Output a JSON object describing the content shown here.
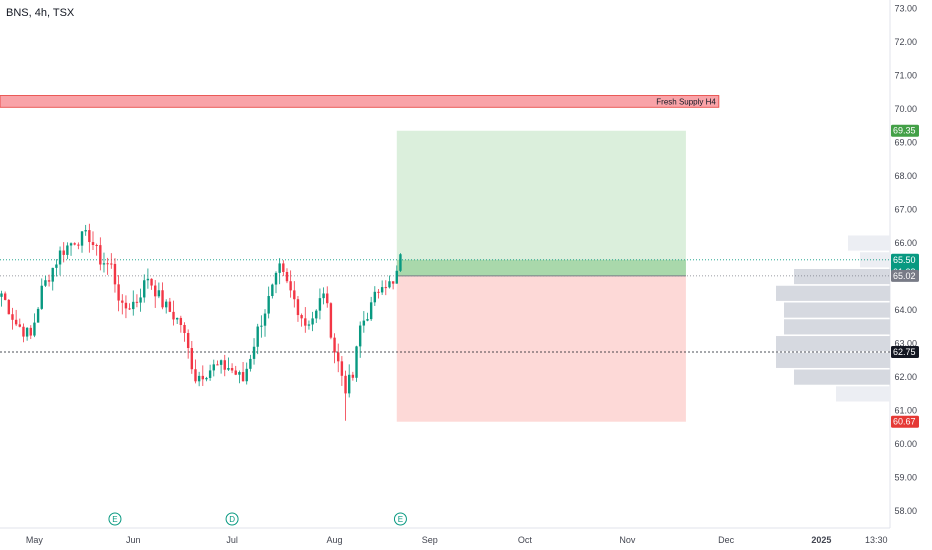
{
  "header": {
    "symbol": "BNS, 4h, TSX"
  },
  "chart_data": {
    "type": "candlestick",
    "y_axis": {
      "ylim": [
        57.5,
        73.25
      ],
      "ticks": [
        "58.00",
        "59.00",
        "60.00",
        "61.00",
        "62.00",
        "63.00",
        "64.00",
        "65.00",
        "66.00",
        "67.00",
        "68.00",
        "69.00",
        "70.00",
        "71.00",
        "72.00",
        "73.00"
      ]
    },
    "x_axis": {
      "labels": [
        {
          "label": "May",
          "bar": 9
        },
        {
          "label": "Jun",
          "bar": 36
        },
        {
          "label": "Jul",
          "bar": 63
        },
        {
          "label": "Aug",
          "bar": 91
        },
        {
          "label": "Sep",
          "bar": 117
        },
        {
          "label": "Oct",
          "bar": 143
        },
        {
          "label": "Nov",
          "bar": 171
        },
        {
          "label": "Dec",
          "bar": 198
        },
        {
          "label": "2025",
          "bar": 224
        },
        {
          "label": "13:30",
          "bar": 239
        }
      ]
    },
    "supply_zone": {
      "label": "Fresh Supply H4",
      "low": 70.05,
      "high": 70.4,
      "end_bar": 196
    },
    "position": {
      "entry": 65.02,
      "target": 69.35,
      "stop": 60.67,
      "start_bar": 108,
      "end_bar": 187,
      "current": 65.5
    },
    "levels": [
      65.5,
      65.02,
      62.75
    ],
    "price_tags": [
      {
        "value": 69.35,
        "label": "69.35",
        "color": "#43a047"
      },
      {
        "value": 65.5,
        "label": "65.50",
        "sub": "01:28:48",
        "color": "#089981"
      },
      {
        "value": 65.02,
        "label": "65.02",
        "color": "#787b86"
      },
      {
        "value": 62.75,
        "label": "62.75",
        "color": "#131722"
      },
      {
        "value": 60.67,
        "label": "60.67",
        "color": "#e53935"
      }
    ],
    "events": [
      {
        "bar": 31,
        "letter": "E"
      },
      {
        "bar": 63,
        "letter": "D"
      },
      {
        "bar": 109,
        "letter": "E"
      }
    ],
    "volume_profile": [
      {
        "price": 66.0,
        "width": 42
      },
      {
        "price": 65.5,
        "width": 30
      },
      {
        "price": 65.0,
        "width": 96
      },
      {
        "price": 64.5,
        "width": 114
      },
      {
        "price": 64.0,
        "width": 106
      },
      {
        "price": 63.5,
        "width": 106
      },
      {
        "price": 63.0,
        "width": 114
      },
      {
        "price": 62.5,
        "width": 114
      },
      {
        "price": 62.0,
        "width": 96
      },
      {
        "price": 61.5,
        "width": 54
      }
    ],
    "close_path": [
      {
        "bar": 0,
        "price": 64.5
      },
      {
        "bar": 4,
        "price": 63.6
      },
      {
        "bar": 8,
        "price": 63.2
      },
      {
        "bar": 11,
        "price": 64.6
      },
      {
        "bar": 16,
        "price": 65.7
      },
      {
        "bar": 20,
        "price": 66.1
      },
      {
        "bar": 24,
        "price": 66.2
      },
      {
        "bar": 27,
        "price": 65.5
      },
      {
        "bar": 30,
        "price": 65.3
      },
      {
        "bar": 33,
        "price": 64.0
      },
      {
        "bar": 37,
        "price": 64.3
      },
      {
        "bar": 40,
        "price": 65.0
      },
      {
        "bar": 44,
        "price": 64.2
      },
      {
        "bar": 49,
        "price": 63.6
      },
      {
        "bar": 53,
        "price": 62.0
      },
      {
        "bar": 58,
        "price": 62.3
      },
      {
        "bar": 62,
        "price": 62.3
      },
      {
        "bar": 66,
        "price": 61.9
      },
      {
        "bar": 70,
        "price": 63.4
      },
      {
        "bar": 74,
        "price": 64.6
      },
      {
        "bar": 76,
        "price": 65.2
      },
      {
        "bar": 80,
        "price": 64.3
      },
      {
        "bar": 83,
        "price": 63.6
      },
      {
        "bar": 86,
        "price": 63.9
      },
      {
        "bar": 88,
        "price": 64.6
      },
      {
        "bar": 91,
        "price": 62.8
      },
      {
        "bar": 94,
        "price": 61.7
      },
      {
        "bar": 96,
        "price": 62.0
      },
      {
        "bar": 98,
        "price": 63.5
      },
      {
        "bar": 101,
        "price": 64.1
      },
      {
        "bar": 104,
        "price": 64.9
      },
      {
        "bar": 107,
        "price": 64.7
      },
      {
        "bar": 109,
        "price": 65.5
      }
    ],
    "key_wicks": [
      {
        "bar": 25,
        "high": 66.35
      },
      {
        "bar": 76,
        "high": 65.55
      },
      {
        "bar": 94,
        "low": 60.7
      },
      {
        "bar": 109,
        "high": 65.7
      }
    ]
  }
}
